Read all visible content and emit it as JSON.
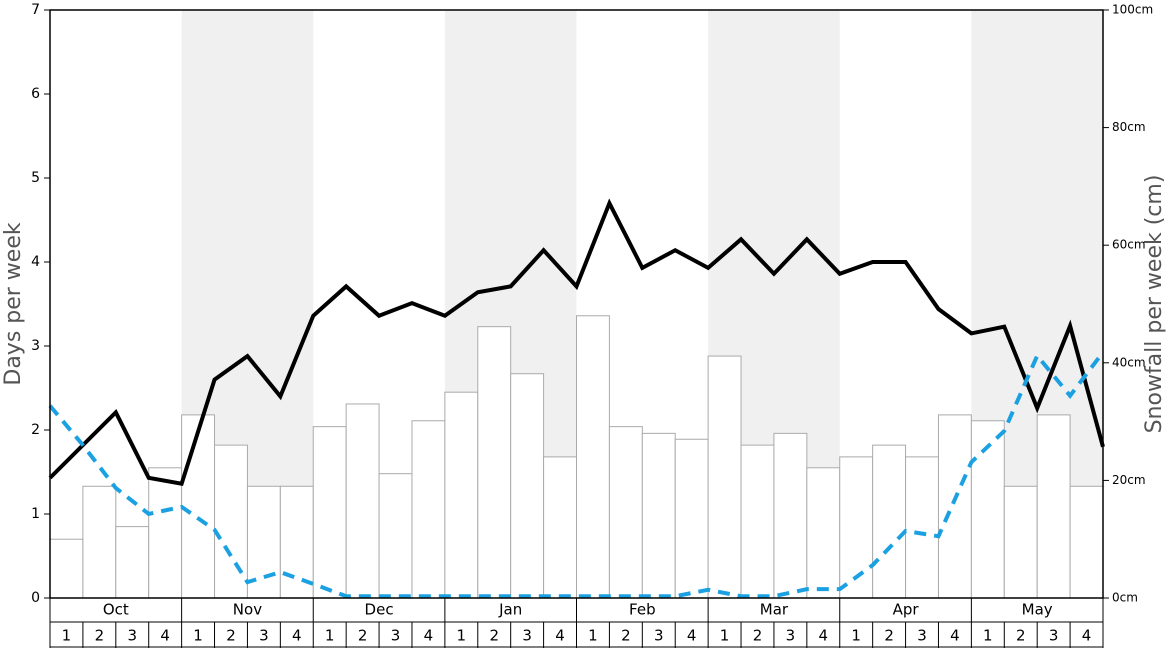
{
  "chart_data": {
    "type": "combo",
    "y_label": "Days per week",
    "y2_label": "Snowfall per week (cm)",
    "categories": [
      "Oct",
      "Nov",
      "Dec",
      "Jan",
      "Feb",
      "Mar",
      "Apr",
      "May"
    ],
    "weeks": [
      "1",
      "2",
      "3",
      "4"
    ],
    "xlim": [
      0,
      32
    ],
    "ylim": [
      0,
      7
    ],
    "yticks": [
      0,
      1,
      2,
      3,
      4,
      5,
      6,
      7
    ],
    "y2lim": [
      0,
      100
    ],
    "y2ticks": [
      {
        "value": 0,
        "label": "0cm"
      },
      {
        "value": 20,
        "label": "20cm"
      },
      {
        "value": 40,
        "label": "40cm"
      },
      {
        "value": 60,
        "label": "60cm"
      },
      {
        "value": 80,
        "label": "80cm"
      },
      {
        "value": 100,
        "label": "100cm"
      }
    ],
    "band_color": "#f0f0f0",
    "series": [
      {
        "type": "bar",
        "color": "#ffffff",
        "stroke": "#aaaaaa",
        "x": [
          0,
          1,
          2,
          3,
          4,
          5,
          6,
          7,
          8,
          9,
          10,
          11,
          12,
          13,
          14,
          15,
          16,
          17,
          18,
          19,
          20,
          21,
          22,
          23,
          24,
          25,
          26,
          27,
          28,
          29,
          30,
          31
        ],
        "values": [
          0.7,
          1.33,
          0.85,
          1.55,
          2.18,
          1.82,
          1.33,
          1.33,
          2.04,
          2.31,
          1.48,
          2.11,
          2.45,
          3.23,
          2.67,
          1.68,
          3.36,
          2.04,
          1.96,
          1.89,
          2.88,
          1.82,
          1.96,
          1.55,
          1.68,
          1.82,
          1.68,
          2.18,
          2.11,
          1.33,
          2.18,
          1.33
        ]
      },
      {
        "type": "line",
        "color": "#000000",
        "x": [
          0,
          1,
          2,
          3,
          4,
          5,
          6,
          7,
          8,
          9,
          10,
          11,
          12,
          13,
          14,
          15,
          16,
          17,
          18,
          19,
          20,
          21,
          22,
          23,
          24,
          25,
          26,
          27,
          28,
          29,
          30,
          31,
          32
        ],
        "values": [
          1.43,
          1.82,
          2.21,
          1.43,
          1.36,
          2.6,
          2.88,
          2.4,
          3.36,
          3.71,
          3.36,
          3.51,
          3.36,
          3.64,
          3.71,
          4.14,
          3.71,
          4.7,
          3.93,
          4.14,
          3.93,
          4.27,
          3.86,
          4.27,
          3.86,
          4.0,
          4.0,
          3.44,
          3.15,
          3.23,
          2.26,
          3.24,
          1.8
        ]
      },
      {
        "type": "line",
        "axis": "y2",
        "dashed": true,
        "color": "#1ba1e2",
        "x": [
          0,
          1,
          2,
          3,
          4,
          5,
          6,
          7,
          8,
          9,
          10,
          11,
          12,
          13,
          14,
          15,
          16,
          17,
          18,
          19,
          20,
          21,
          22,
          23,
          24,
          25,
          26,
          27,
          28,
          29,
          30,
          31,
          32
        ],
        "values": [
          32.7,
          26,
          18.7,
          14.3,
          15.5,
          11.6,
          2.7,
          4.4,
          2.4,
          0.3,
          0.3,
          0.3,
          0.3,
          0.3,
          0.3,
          0.3,
          0.3,
          0.3,
          0.3,
          0.3,
          1.4,
          0.3,
          0.3,
          1.5,
          1.5,
          5.6,
          11.4,
          10.5,
          23.1,
          28.4,
          41.2,
          34.4,
          41.8
        ]
      }
    ]
  }
}
